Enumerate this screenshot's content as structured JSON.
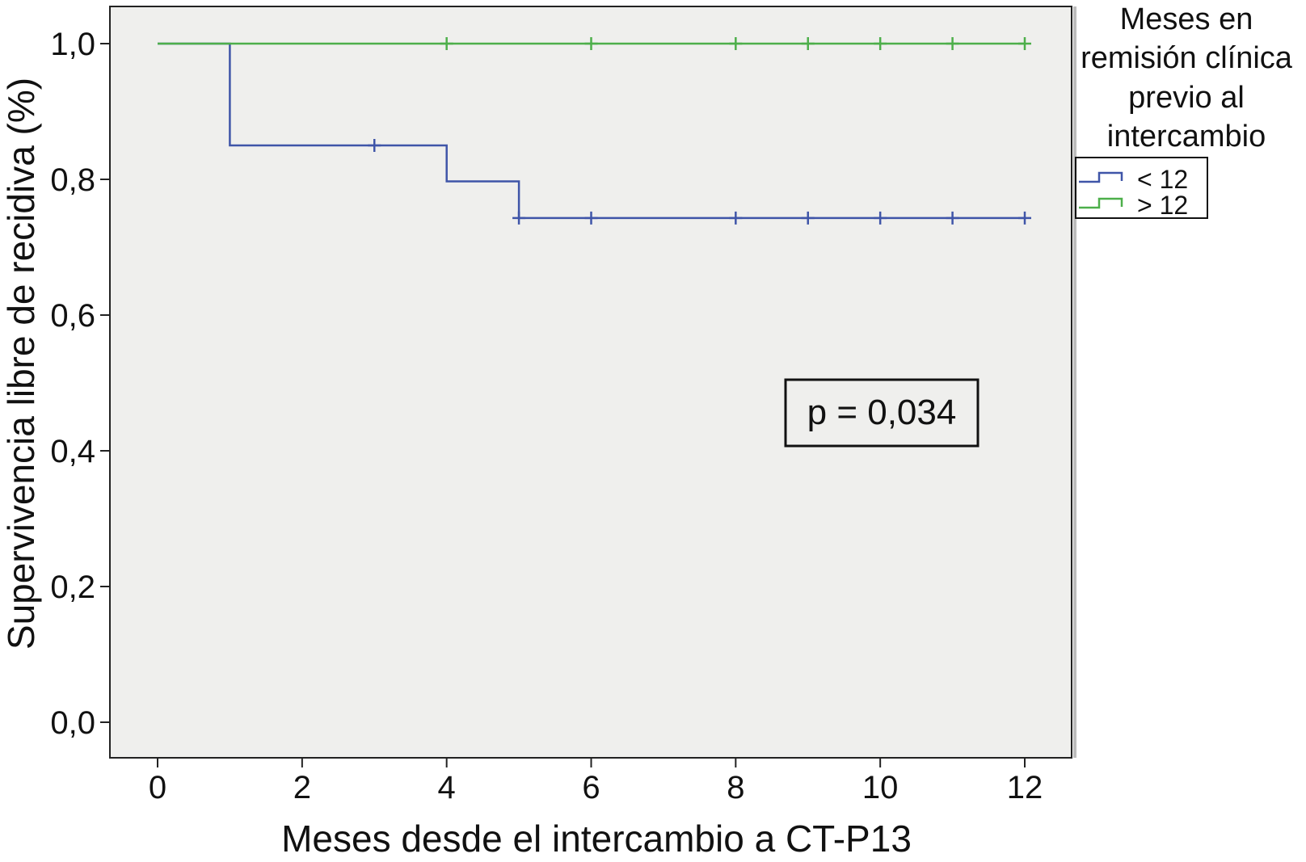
{
  "chart_data": {
    "type": "line",
    "subtype": "kaplan-meier",
    "title": "",
    "xlabel": "Meses desde el intercambio a CT-P13",
    "ylabel": "Supervivencia libre de recidiva (%)",
    "xlim": [
      0,
      12
    ],
    "ylim": [
      0,
      1
    ],
    "x_ticks": [
      0,
      2,
      4,
      6,
      8,
      10,
      12
    ],
    "x_tick_labels": [
      "0",
      "2",
      "4",
      "6",
      "8",
      "10",
      "12"
    ],
    "y_ticks": [
      0,
      0.2,
      0.4,
      0.6,
      0.8,
      1.0
    ],
    "y_tick_labels": [
      "0,0",
      "0,2",
      "0,4",
      "0,6",
      "0,8",
      "1,0"
    ],
    "grid": false,
    "plot_background": "#efefed",
    "legend": {
      "title_lines": [
        "Meses en",
        "remisión clínica",
        "previo al",
        "intercambio"
      ],
      "placement": "right-outside"
    },
    "series": [
      {
        "name": "< 12",
        "color": "#3f55a8",
        "steps": [
          [
            0,
            1.0
          ],
          [
            1,
            1.0
          ],
          [
            1,
            0.85
          ],
          [
            4,
            0.85
          ],
          [
            4,
            0.797
          ],
          [
            5,
            0.797
          ],
          [
            5,
            0.743
          ],
          [
            12,
            0.743
          ]
        ],
        "censored": [
          [
            3,
            0.85
          ],
          [
            5,
            0.743
          ],
          [
            6,
            0.743
          ],
          [
            8,
            0.743
          ],
          [
            9,
            0.743
          ],
          [
            10,
            0.743
          ],
          [
            11,
            0.743
          ],
          [
            12,
            0.743
          ]
        ]
      },
      {
        "name": "> 12",
        "color": "#4daf4a",
        "steps": [
          [
            0,
            1.0
          ],
          [
            12,
            1.0
          ]
        ],
        "censored": [
          [
            4,
            1.0
          ],
          [
            6,
            1.0
          ],
          [
            8,
            1.0
          ],
          [
            9,
            1.0
          ],
          [
            10,
            1.0
          ],
          [
            11,
            1.0
          ],
          [
            12,
            1.0
          ]
        ]
      }
    ],
    "annotations": [
      {
        "text": "p = 0,034",
        "placement": "center-right"
      }
    ]
  }
}
